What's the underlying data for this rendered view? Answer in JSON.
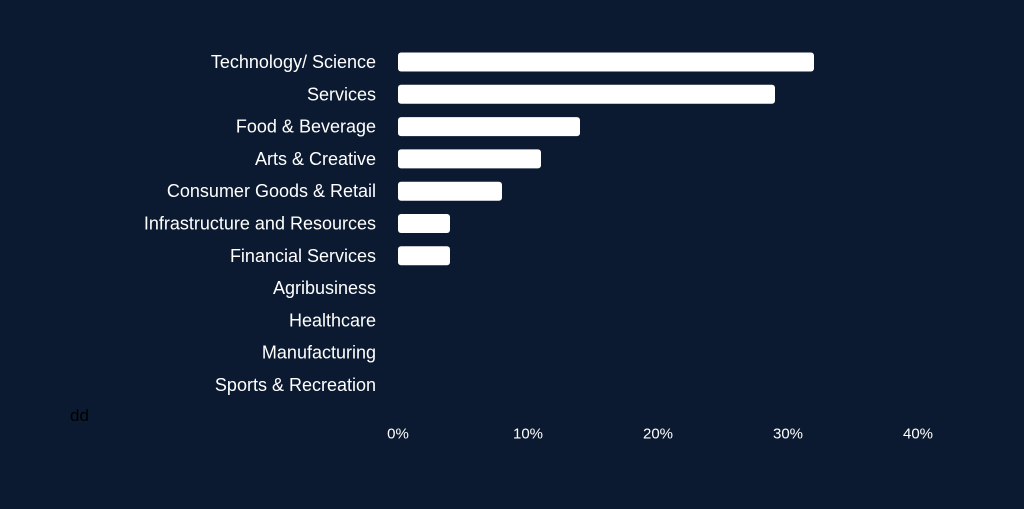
{
  "stray_text": "dd",
  "colors": {
    "background": "#0b1a30",
    "bar": "#ffffff",
    "text": "#ffffff"
  },
  "chart_data": {
    "type": "bar",
    "orientation": "horizontal",
    "categories": [
      "Technology/ Science",
      "Services",
      "Food & Beverage",
      "Arts & Creative",
      "Consumer Goods & Retail",
      "Infrastructure and Resources",
      "Financial Services",
      "Agribusiness",
      "Healthcare",
      "Manufacturing",
      "Sports & Recreation"
    ],
    "values": [
      32,
      29,
      14,
      11,
      8,
      4,
      4,
      0,
      0,
      0,
      0
    ],
    "value_unit": "%",
    "xlim": [
      0,
      40
    ],
    "xticks": [
      0,
      10,
      20,
      30,
      40
    ],
    "xtick_labels": [
      "0%",
      "10%",
      "20%",
      "30%",
      "40%"
    ],
    "grid": false,
    "legend": "none"
  }
}
